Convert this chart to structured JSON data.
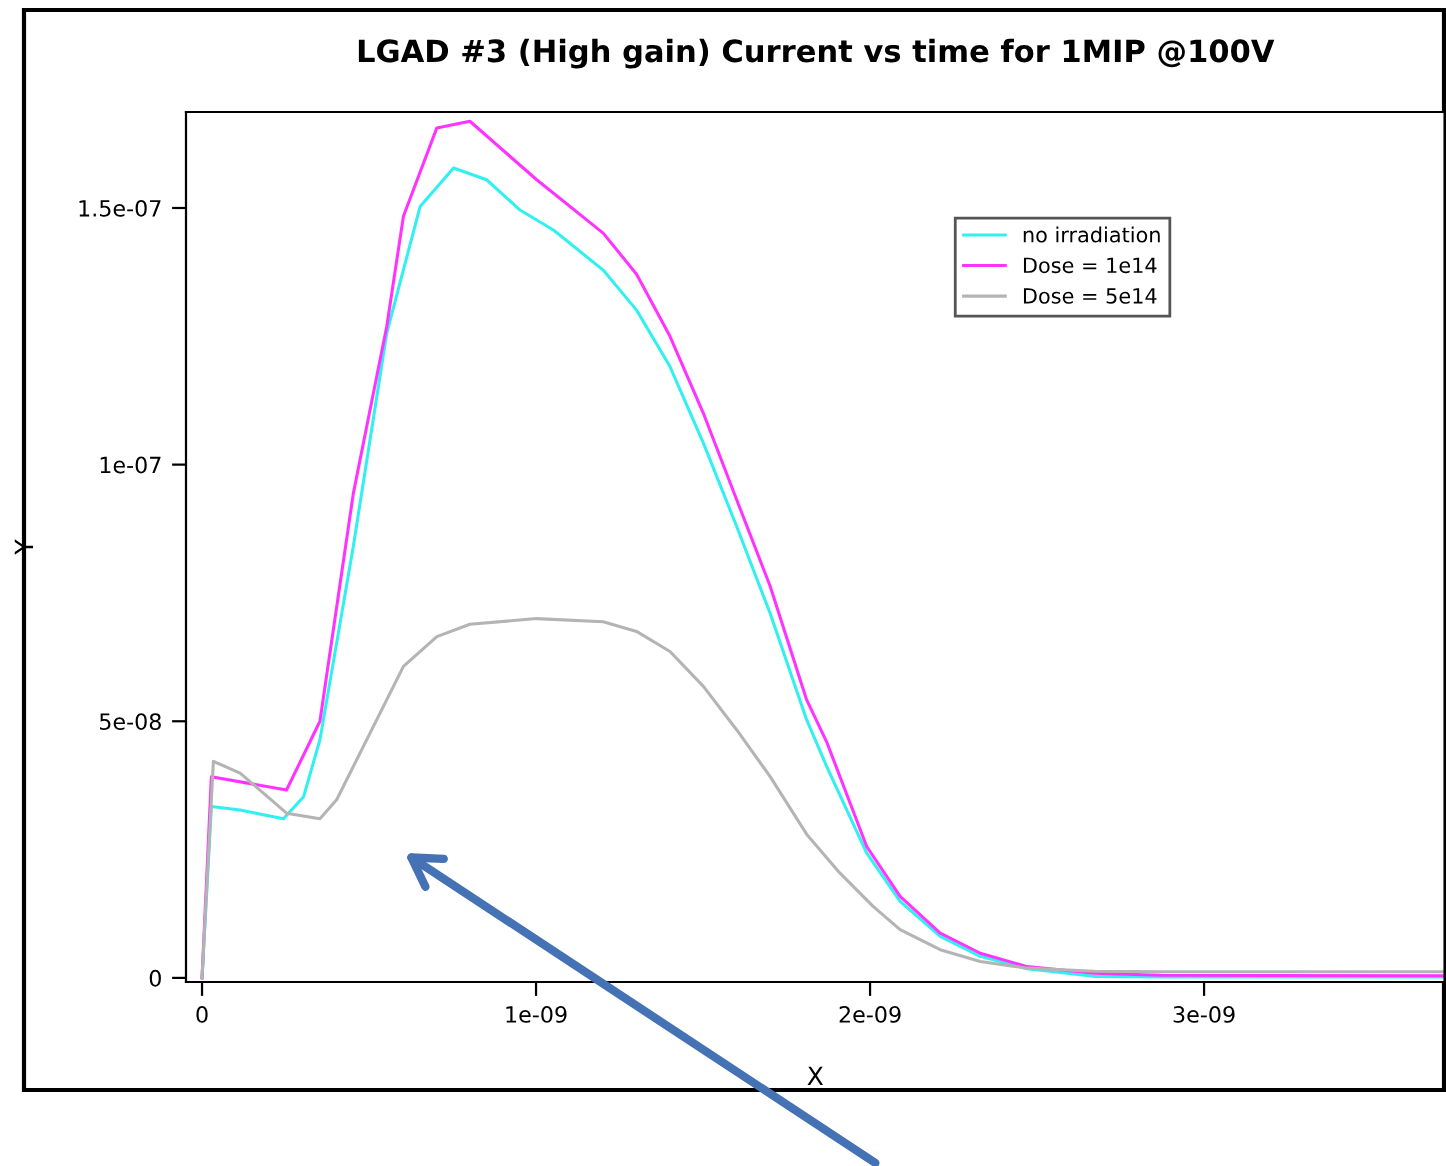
{
  "chart_data": {
    "type": "line",
    "title": "LGAD #3 (High gain) Current vs time for 1MIP @100V",
    "xlabel": "X",
    "ylabel": "Y",
    "xlim": [
      -4.8e-11,
      3.72e-09
    ],
    "ylim": [
      -8e-10,
      1.687e-07
    ],
    "xticks": [
      0,
      {
        "value": 1e-09,
        "label": "1e-09"
      },
      {
        "value": 2e-09,
        "label": "2e-09"
      },
      {
        "value": 3e-09,
        "label": "3e-09"
      }
    ],
    "yticks": [
      0,
      {
        "value": 5e-08,
        "label": "5e-08"
      },
      {
        "value": 1e-07,
        "label": "1e-07"
      },
      {
        "value": 1.5e-07,
        "label": "1.5e-07"
      }
    ],
    "grid": false,
    "legend": "top right",
    "marker": "none",
    "line_style": "solid",
    "series": [
      {
        "name": "no irradiation",
        "color": "#33f0f0",
        "x": [
          0,
          2.8e-11,
          1.14e-10,
          2.44e-10,
          3.04e-10,
          3.53e-10,
          4.53e-10,
          5.53e-10,
          6.53e-10,
          7.53e-10,
          8.52e-10,
          9.52e-10,
          1.052e-09,
          1.201e-09,
          1.301e-09,
          1.401e-09,
          1.501e-09,
          1.601e-09,
          1.701e-09,
          1.81e-09,
          1.87e-09,
          1.99e-09,
          2.09e-09,
          2.21e-09,
          2.33e-09,
          2.47e-09,
          2.67e-09,
          2.87e-09,
          3.72e-09
        ],
        "values": [
          0,
          3.34e-08,
          3.27e-08,
          3.1e-08,
          3.53e-08,
          4.64e-08,
          8.41e-08,
          1.256e-07,
          1.503e-07,
          1.578e-07,
          1.555e-07,
          1.496e-07,
          1.457e-07,
          1.379e-07,
          1.301e-07,
          1.191e-07,
          1.042e-07,
          8.79e-08,
          7.1e-08,
          5.03e-08,
          4.12e-08,
          2.43e-08,
          1.49e-08,
          8.1e-09,
          4.2e-09,
          1.8e-09,
          3e-10,
          2e-10,
          2e-10
        ]
      },
      {
        "name": "Dose = 1e14",
        "color": "#ff33ff",
        "x": [
          0,
          2.8e-11,
          2.53e-10,
          3.53e-10,
          4.53e-10,
          5.53e-10,
          6.03e-10,
          7.03e-10,
          8.02e-10,
          1.002e-09,
          1.201e-09,
          1.301e-09,
          1.401e-09,
          1.501e-09,
          1.601e-09,
          1.701e-09,
          1.81e-09,
          1.87e-09,
          1.99e-09,
          2.09e-09,
          2.21e-09,
          2.33e-09,
          2.47e-09,
          2.67e-09,
          2.87e-09,
          3.72e-09
        ],
        "values": [
          0,
          3.92e-08,
          3.66e-08,
          5e-08,
          9.44e-08,
          1.269e-07,
          1.484e-07,
          1.656e-07,
          1.669e-07,
          1.555e-07,
          1.451e-07,
          1.371e-07,
          1.25e-07,
          1.1e-07,
          9.31e-08,
          7.63e-08,
          5.42e-08,
          4.6e-08,
          2.56e-08,
          1.59e-08,
          8.7e-09,
          4.8e-09,
          2.2e-09,
          9e-10,
          5e-10,
          4e-10
        ]
      },
      {
        "name": "Dose = 5e14",
        "color": "#b4b4b4",
        "x": [
          0,
          3.4e-11,
          1.14e-10,
          2.53e-10,
          3.53e-10,
          4.03e-10,
          5.03e-10,
          6.03e-10,
          7.03e-10,
          8.02e-10,
          1.002e-09,
          1.201e-09,
          1.301e-09,
          1.401e-09,
          1.501e-09,
          1.601e-09,
          1.701e-09,
          1.81e-09,
          1.91e-09,
          2.01e-09,
          2.09e-09,
          2.21e-09,
          2.33e-09,
          2.47e-09,
          2.67e-09,
          2.87e-09,
          3.72e-09
        ],
        "values": [
          0,
          4.22e-08,
          3.99e-08,
          3.21e-08,
          3.1e-08,
          3.47e-08,
          4.77e-08,
          6.07e-08,
          6.65e-08,
          6.89e-08,
          7e-08,
          6.94e-08,
          6.75e-08,
          6.36e-08,
          5.68e-08,
          4.83e-08,
          3.92e-08,
          2.8e-08,
          2.04e-08,
          1.39e-08,
          9.4e-09,
          5.5e-09,
          3.2e-09,
          1.9e-09,
          1.3e-09,
          1.2e-09,
          1.2e-09
        ]
      }
    ]
  }
}
